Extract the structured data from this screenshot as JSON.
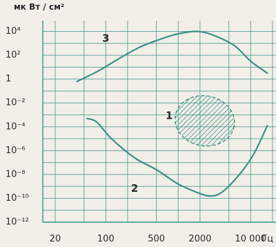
{
  "chart_data": {
    "type": "line",
    "ylabel": "мк Вт / см²",
    "y_ticks": [
      {
        "exp": 4,
        "label": "10⁴"
      },
      {
        "exp": 2,
        "label": "10²"
      },
      {
        "exp": 0,
        "label": "1"
      },
      {
        "exp": -2,
        "label": "10⁻²"
      },
      {
        "exp": -4,
        "label": "10⁻⁴"
      },
      {
        "exp": -6,
        "label": "10⁻⁶"
      },
      {
        "exp": -8,
        "label": "10⁻⁸"
      },
      {
        "exp": -10,
        "label": "10⁻¹⁰"
      },
      {
        "exp": -12,
        "label": "10⁻¹²"
      }
    ],
    "x_ticks": [
      {
        "value": 20,
        "label": "20"
      },
      {
        "value": 100,
        "label": "100"
      },
      {
        "value": 500,
        "label": "500"
      },
      {
        "value": 2000,
        "label": "2000"
      },
      {
        "value": 10000,
        "label": "10 000"
      }
    ],
    "xunit": "Гц",
    "xlim_log10": [
      1.13,
      4.35
    ],
    "ylim_exp": [
      -12,
      4.9
    ],
    "series": [
      {
        "name": "3",
        "label_at": {
          "x": 100,
          "exp": 3.4
        },
        "points": [
          {
            "x": 40,
            "exp": -0.2
          },
          {
            "x": 80,
            "exp": 0.7
          },
          {
            "x": 150,
            "exp": 1.7
          },
          {
            "x": 300,
            "exp": 2.7
          },
          {
            "x": 600,
            "exp": 3.4
          },
          {
            "x": 1000,
            "exp": 3.8
          },
          {
            "x": 1800,
            "exp": 4.0
          },
          {
            "x": 3000,
            "exp": 3.7
          },
          {
            "x": 6000,
            "exp": 2.8
          },
          {
            "x": 10000,
            "exp": 1.5
          },
          {
            "x": 17000,
            "exp": 0.5
          }
        ]
      },
      {
        "name": "1",
        "label_at": {
          "x": 750,
          "exp": -3.1
        },
        "points": [
          {
            "x": 55,
            "exp": -3.3
          },
          {
            "x": 75,
            "exp": -3.6
          },
          {
            "x": 120,
            "exp": -5.0
          },
          {
            "x": 250,
            "exp": -6.6
          },
          {
            "x": 500,
            "exp": -7.6
          },
          {
            "x": 1000,
            "exp": -8.8
          },
          {
            "x": 2000,
            "exp": -9.6
          },
          {
            "x": 2800,
            "exp": -9.8
          },
          {
            "x": 4000,
            "exp": -9.5
          },
          {
            "x": 7000,
            "exp": -8.0
          },
          {
            "x": 11000,
            "exp": -6.3
          },
          {
            "x": 17000,
            "exp": -3.9
          }
        ]
      },
      {
        "name": "2",
        "label_at": {
          "x": 250,
          "exp": -9.2
        }
      }
    ],
    "region": {
      "style": "hatched-ellipse-dashed-outline",
      "center": {
        "x": 2400,
        "exp": -3.5
      },
      "x_range": [
        900,
        6000
      ],
      "exp_range": [
        -5.6,
        -1.4
      ]
    },
    "grid": true,
    "colors": {
      "curve": "#3a8f86",
      "grid": "#3a8f86",
      "hatch": "#3a8f86",
      "text": "#2a2a2a"
    }
  }
}
